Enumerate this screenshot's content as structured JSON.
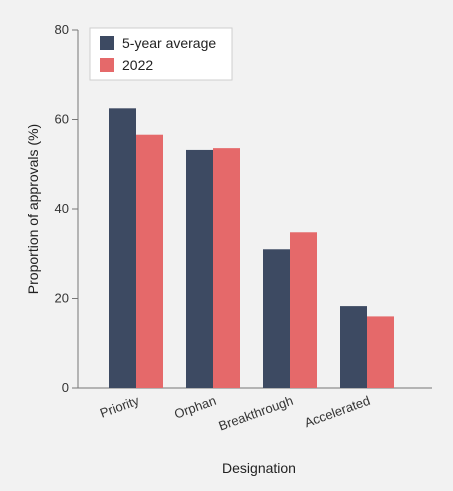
{
  "chart_data": {
    "type": "bar",
    "title": "",
    "xlabel": "Designation",
    "ylabel": "Proportion of approvals (%)",
    "categories": [
      "Priority",
      "Orphan",
      "Breakthrough",
      "Accelerated"
    ],
    "series": [
      {
        "name": "5-year average",
        "color": "#3d4a62",
        "values": [
          62.5,
          53.2,
          31.0,
          18.3
        ]
      },
      {
        "name": "2022",
        "color": "#e5696a",
        "values": [
          56.6,
          53.6,
          34.8,
          16.0
        ]
      }
    ],
    "ylim": [
      0,
      80
    ],
    "yticks": [
      "0",
      "20",
      "40",
      "60",
      "80"
    ],
    "grid": false,
    "legend_position": "top-left"
  }
}
